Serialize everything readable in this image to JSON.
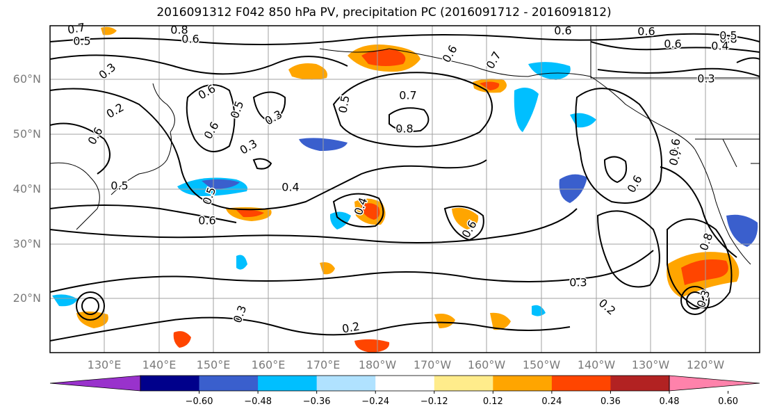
{
  "title": "2016091312 F042 850 hPa PV, precipitation PC (2016091712 - 2016091812)",
  "lat_labels": [
    "60°N",
    "50°N",
    "40°N",
    "30°N",
    "20°N"
  ],
  "lon_labels": [
    "130°E",
    "140°E",
    "150°E",
    "160°E",
    "170°E",
    "180°W",
    "170°W",
    "160°W",
    "150°W",
    "140°W",
    "130°W",
    "120°W"
  ],
  "contour_labels": [
    "0.7",
    "0.5",
    "0.8",
    "0.6",
    "0.3",
    "0.6",
    "0.5",
    "0.3",
    "0.6",
    "0.7",
    "0.7",
    "0.5",
    "0.8",
    "0.2",
    "0.6",
    "0.6",
    "0.5",
    "0.3",
    "0.4",
    "0.5",
    "0.6",
    "0.4",
    "0.6",
    "0.6",
    "0.6",
    "0.6",
    "0.8",
    "0.6",
    "0.7",
    "0.8",
    "0.3",
    "0.2",
    "0.3",
    "0.3",
    "0.2",
    "0.6",
    "0.5",
    "0.4",
    "0.3"
  ],
  "colorbar": {
    "colors": [
      "#9932cc",
      "#00008b",
      "#3a5fcd",
      "#00bfff",
      "#b0e2ff",
      "#ffffff",
      "#ffec8b",
      "#ffa500",
      "#ff4500",
      "#b22222",
      "#ff82ab"
    ],
    "tick_labels": [
      "−0.60",
      "−0.48",
      "−0.36",
      "−0.24",
      "−0.12",
      "0.12",
      "0.24",
      "0.36",
      "0.48",
      "0.60"
    ]
  }
}
